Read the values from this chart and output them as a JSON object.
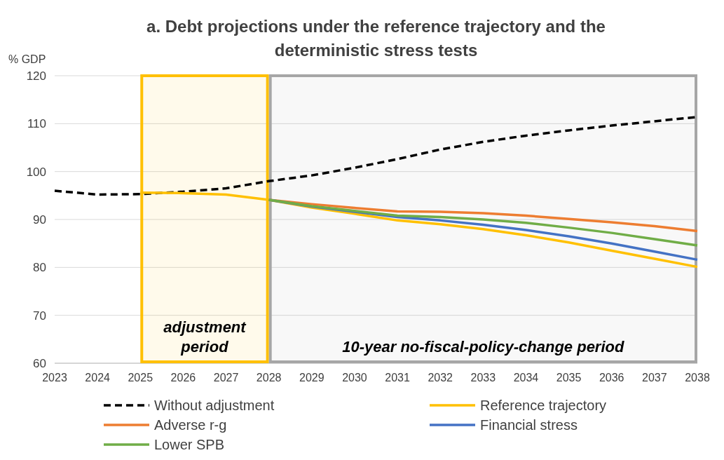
{
  "chart_data": {
    "type": "line",
    "title": "a. Debt projections under the reference trajectory and the deterministic stress tests",
    "ylabel": "% GDP",
    "x": [
      2023,
      2024,
      2025,
      2026,
      2027,
      2028,
      2029,
      2030,
      2031,
      2032,
      2033,
      2034,
      2035,
      2036,
      2037,
      2038
    ],
    "xlim": [
      2023,
      2038
    ],
    "xticks": [
      2023,
      2024,
      2025,
      2026,
      2027,
      2028,
      2029,
      2030,
      2031,
      2032,
      2033,
      2034,
      2035,
      2036,
      2037,
      2038
    ],
    "ylim": [
      60,
      120
    ],
    "yticks": [
      60,
      70,
      80,
      90,
      100,
      110,
      120
    ],
    "grid": "y",
    "legend": "bottom",
    "series": [
      {
        "name": "Without adjustment",
        "color": "#000000",
        "line_style": "dashed",
        "values": [
          96,
          95.2,
          95.3,
          95.8,
          96.5,
          98,
          99.2,
          100.8,
          102.6,
          104.6,
          106.2,
          107.5,
          108.6,
          109.6,
          110.5,
          111.4
        ]
      },
      {
        "name": "Reference trajectory",
        "color": "#ffc000",
        "values": [
          null,
          null,
          95.6,
          95.5,
          95.2,
          94.1,
          92.5,
          91.2,
          89.8,
          89,
          88,
          86.7,
          85.2,
          83.5,
          81.8,
          80.1
        ]
      },
      {
        "name": "Adverse r-g",
        "color": "#ed7d31",
        "values": [
          null,
          null,
          null,
          null,
          null,
          94.1,
          93.2,
          92.4,
          91.7,
          91.6,
          91.3,
          90.8,
          90.1,
          89.4,
          88.6,
          87.6
        ]
      },
      {
        "name": "Financial stress",
        "color": "#4472c4",
        "values": [
          null,
          null,
          null,
          null,
          null,
          94.1,
          92.7,
          91.6,
          90.5,
          89.8,
          88.9,
          87.8,
          86.5,
          85,
          83.3,
          81.6
        ]
      },
      {
        "name": "Lower SPB",
        "color": "#70ad47",
        "values": [
          null,
          null,
          null,
          null,
          null,
          94.1,
          92.8,
          91.8,
          90.8,
          90.5,
          90,
          89.3,
          88.3,
          87.2,
          85.9,
          84.6
        ]
      }
    ],
    "bands": [
      {
        "axis": "x",
        "from": 2025,
        "to": 2028,
        "label": "adjustment period",
        "color": "#ffc000"
      },
      {
        "axis": "x",
        "from": 2028,
        "to": 2038,
        "label": "10-year no-fiscal-policy-change period",
        "color": "#a6a6a6"
      }
    ]
  }
}
